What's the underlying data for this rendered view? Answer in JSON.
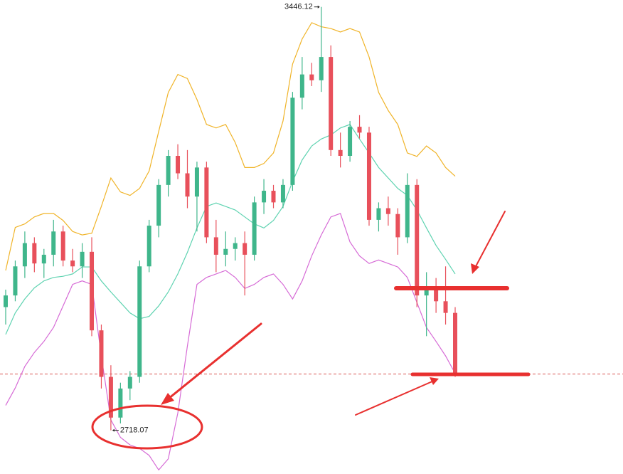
{
  "chart_data": {
    "type": "candlestick",
    "ylim": [
      2643,
      3458
    ],
    "open": [
      2930,
      2950,
      3000,
      3040,
      3005,
      3020,
      3060,
      3010,
      3000,
      3025,
      2890,
      2810,
      2740,
      2790,
      2810,
      3000,
      3070,
      3140,
      3190,
      3160,
      3120,
      3170,
      3050,
      3020,
      3030,
      3040,
      3020,
      3110,
      3130,
      3110,
      3140,
      3290,
      3330,
      3320,
      3360,
      3200,
      3190,
      3240,
      3230,
      3080,
      3100,
      3090,
      3050,
      3140,
      2950,
      2960,
      2940,
      2920
    ],
    "high": [
      2960,
      3010,
      3060,
      3050,
      3030,
      3080,
      3070,
      3030,
      3040,
      3050,
      2900,
      2830,
      2800,
      2820,
      3010,
      3080,
      3150,
      3200,
      3210,
      3200,
      3180,
      3180,
      3080,
      3060,
      3050,
      3060,
      3120,
      3150,
      3140,
      3150,
      3300,
      3360,
      3350,
      3446.12,
      3380,
      3230,
      3250,
      3260,
      3240,
      3110,
      3120,
      3100,
      3160,
      3150,
      2990,
      2980,
      3000,
      2930
    ],
    "low": [
      2900,
      2940,
      2980,
      2990,
      2980,
      3000,
      3000,
      2990,
      2980,
      2880,
      2790,
      2718.07,
      2730,
      2770,
      2800,
      2990,
      3050,
      3120,
      3150,
      3100,
      3060,
      3040,
      2990,
      3000,
      3010,
      2950,
      3010,
      3090,
      3100,
      3100,
      3130,
      3270,
      3310,
      3300,
      3190,
      3170,
      3180,
      3220,
      3070,
      3060,
      3070,
      3020,
      3040,
      2930,
      2880,
      2920,
      2900,
      2810
    ],
    "close": [
      2950,
      3000,
      3040,
      3005,
      3020,
      3060,
      3010,
      3000,
      3025,
      2890,
      2810,
      2740,
      2790,
      2810,
      3000,
      3070,
      3140,
      3190,
      3160,
      3120,
      3170,
      3050,
      3020,
      3030,
      3040,
      3020,
      3110,
      3130,
      3110,
      3140,
      3290,
      3330,
      3320,
      3360,
      3200,
      3190,
      3240,
      3230,
      3080,
      3100,
      3090,
      3050,
      3140,
      2950,
      2960,
      2940,
      2920,
      2815
    ],
    "up_color": "#3fb68b",
    "down_color": "#e8505b",
    "bands": [
      {
        "color": "#f0b429",
        "values": [
          2993,
          3067,
          3073,
          3085,
          3091,
          3091,
          3079,
          3060,
          3054,
          3057,
          3103,
          3152,
          3128,
          3122,
          3134,
          3164,
          3232,
          3299,
          3330,
          3323,
          3287,
          3244,
          3238,
          3244,
          3213,
          3170,
          3170,
          3177,
          3195,
          3250,
          3348,
          3391,
          3419,
          3412,
          3409,
          3403,
          3409,
          3403,
          3360,
          3299,
          3268,
          3244,
          3195,
          3189,
          3207,
          3195,
          3170,
          3155
        ]
      },
      {
        "color": "#5fd3b1",
        "values": [
          2883,
          2920,
          2944,
          2963,
          2975,
          2981,
          2983,
          2987,
          2999,
          2999,
          2975,
          2956,
          2938,
          2920,
          2910,
          2914,
          2932,
          2956,
          2987,
          3024,
          3066,
          3103,
          3109,
          3103,
          3097,
          3085,
          3073,
          3066,
          3079,
          3103,
          3146,
          3183,
          3207,
          3219,
          3226,
          3238,
          3244,
          3219,
          3195,
          3170,
          3152,
          3134,
          3122,
          3097,
          3066,
          3036,
          3012,
          2987
        ]
      },
      {
        "color": "#d66bd6",
        "values": [
          2761,
          2791,
          2828,
          2852,
          2871,
          2895,
          2932,
          2969,
          2975,
          2969,
          2846,
          2736,
          2706,
          2693,
          2687,
          2675,
          2650,
          2669,
          2748,
          2863,
          2969,
          2981,
          2987,
          2993,
          2981,
          2962,
          2969,
          2981,
          2987,
          2969,
          2944,
          2975,
          3018,
          3054,
          3085,
          3091,
          3042,
          3018,
          3005,
          3011,
          3005,
          2999,
          2981,
          2938,
          2895,
          2871,
          2846,
          2816
        ]
      }
    ],
    "annotations": [
      "3446.12",
      "2718.07"
    ],
    "price_line_color": "#d9534f"
  }
}
